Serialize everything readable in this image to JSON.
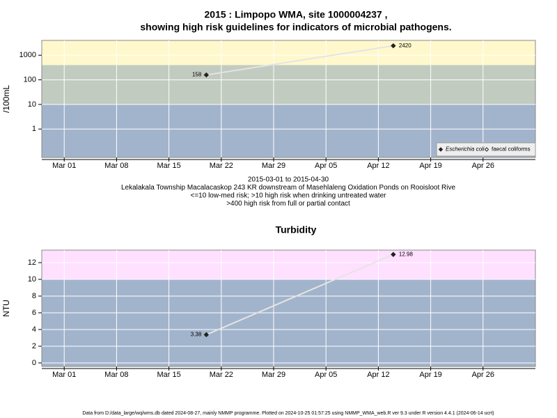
{
  "chart_data": [
    {
      "type": "line",
      "title": [
        "2015 : Limpopo WMA, site 1000004237 ,",
        "showing high risk guidelines for indicators of microbial pathogens."
      ],
      "notes": [
        "2015-03-01 to 2015-04-30",
        "Lekalakala Township Macalacaskop 243 KR downstream of Masehlaleng Oxidation Ponds on Rooisloot Rive",
        "<=10 low-med risk; >10 high risk when drinking untreated water",
        ">400 high risk from full or partial contact"
      ],
      "y_label": "/100mL",
      "log_scale": true,
      "x": [
        "2015-03-20",
        "2015-04-14"
      ],
      "xlim": [
        "2015-02-26",
        "2015-05-03"
      ],
      "xticks": [
        {
          "value": "2015-03-01",
          "label": "Mar 01"
        },
        {
          "value": "2015-03-08",
          "label": "Mar 08"
        },
        {
          "value": "2015-03-15",
          "label": "Mar 15"
        },
        {
          "value": "2015-03-22",
          "label": "Mar 22"
        },
        {
          "value": "2015-03-29",
          "label": "Mar 29"
        },
        {
          "value": "2015-04-05",
          "label": "Apr 05"
        },
        {
          "value": "2015-04-12",
          "label": "Apr 12"
        },
        {
          "value": "2015-04-19",
          "label": "Apr 19"
        },
        {
          "value": "2015-04-26",
          "label": "Apr 26"
        }
      ],
      "ylim": [
        0.07,
        4000
      ],
      "yticks": [
        1,
        10,
        100,
        1000
      ],
      "bands": [
        {
          "to": 10,
          "color": "#a2b4cc"
        },
        {
          "to": 400,
          "color": "#c2cbc0"
        },
        {
          "color": "#fff8cc"
        }
      ],
      "grid": true,
      "legend": "bottom-right",
      "series": [
        {
          "name": "Escherichia coli",
          "color": "#222222",
          "marker": "filled",
          "values": [
            158,
            2420
          ]
        },
        {
          "name": "faecal coliforms",
          "color": "#222222",
          "marker": "open",
          "values": [
            null,
            null
          ]
        }
      ]
    },
    {
      "type": "line",
      "title": [
        "Turbidity"
      ],
      "y_label": "NTU",
      "log_scale": false,
      "x": [
        "2015-03-20",
        "2015-04-14"
      ],
      "xlim": [
        "2015-02-26",
        "2015-05-03"
      ],
      "xticks": [
        {
          "value": "2015-03-01",
          "label": "Mar 01"
        },
        {
          "value": "2015-03-08",
          "label": "Mar 08"
        },
        {
          "value": "2015-03-15",
          "label": "Mar 15"
        },
        {
          "value": "2015-03-22",
          "label": "Mar 22"
        },
        {
          "value": "2015-03-29",
          "label": "Mar 29"
        },
        {
          "value": "2015-04-05",
          "label": "Apr 05"
        },
        {
          "value": "2015-04-12",
          "label": "Apr 12"
        },
        {
          "value": "2015-04-19",
          "label": "Apr 19"
        },
        {
          "value": "2015-04-26",
          "label": "Apr 26"
        }
      ],
      "ylim": [
        -0.42,
        13.5
      ],
      "yticks": [
        0,
        2,
        4,
        6,
        8,
        10,
        12
      ],
      "bands": [
        {
          "to": 10,
          "color": "#a2b4cc"
        },
        {
          "color": "#ffe0ff"
        }
      ],
      "grid": true,
      "series": [
        {
          "name": "Turbidity",
          "color": "#222222",
          "marker": "filled",
          "values": [
            3.38,
            12.98
          ]
        }
      ]
    }
  ],
  "footer": "Data from D:/data_large/wq/wms.db dated 2024-08-27, mainly NMMP programme. Plotted on 2024-10-25 01:57:25 using NMMP_WMA_web.R ver 9.3 under R version 4.4.1 (2024-06-14 ucrt)"
}
